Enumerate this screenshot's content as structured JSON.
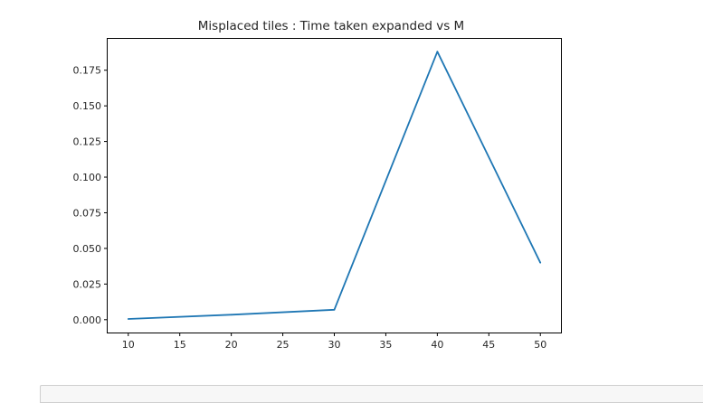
{
  "chart_data": {
    "type": "line",
    "title": "Misplaced tiles : Time taken expanded vs M",
    "xlabel": "",
    "ylabel": "",
    "x": [
      10,
      20,
      30,
      40,
      50
    ],
    "series": [
      {
        "values": [
          0.0005,
          0.0035,
          0.007,
          0.188,
          0.04
        ],
        "color": "#1f77b4"
      }
    ],
    "xlim": [
      8,
      52
    ],
    "ylim": [
      -0.009,
      0.197
    ],
    "xticks": [
      10,
      15,
      20,
      25,
      30,
      35,
      40,
      45,
      50
    ],
    "yticks": [
      0.0,
      0.025,
      0.05,
      0.075,
      0.1,
      0.125,
      0.15,
      0.175
    ],
    "ytick_labels": [
      "0.000",
      "0.025",
      "0.050",
      "0.075",
      "0.100",
      "0.125",
      "0.150",
      "0.175"
    ],
    "grid": false
  }
}
